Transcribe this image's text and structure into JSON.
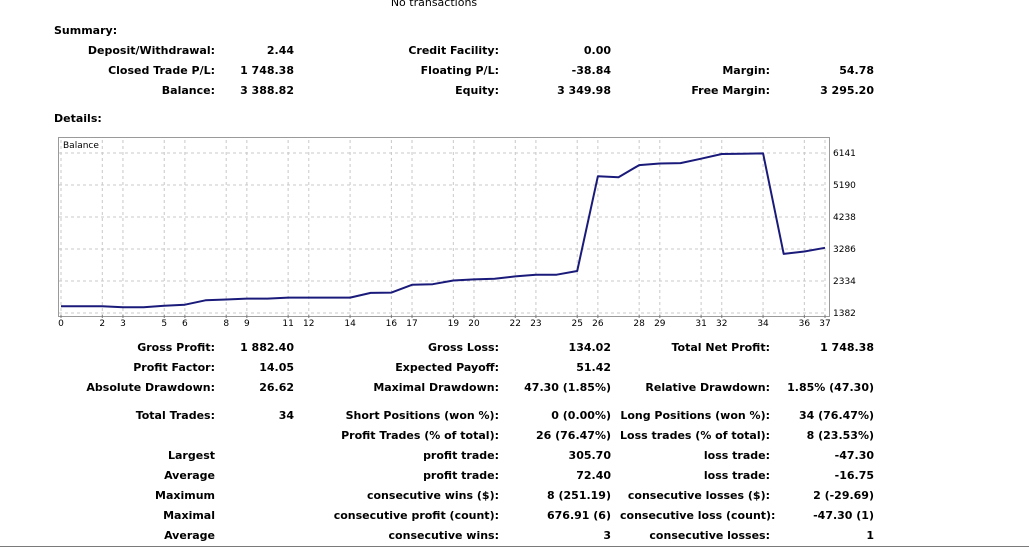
{
  "header": {
    "no_transactions": "No transactions"
  },
  "summary": {
    "title": "Summary:",
    "deposit_label": "Deposit/Withdrawal:",
    "deposit_value": "2.44",
    "credit_label": "Credit Facility:",
    "credit_value": "0.00",
    "closed_pl_label": "Closed Trade P/L:",
    "closed_pl_value": "1 748.38",
    "floating_pl_label": "Floating P/L:",
    "floating_pl_value": "-38.84",
    "margin_label": "Margin:",
    "margin_value": "54.78",
    "balance_label": "Balance:",
    "balance_value": "3 388.82",
    "equity_label": "Equity:",
    "equity_value": "3 349.98",
    "free_margin_label": "Free Margin:",
    "free_margin_value": "3 295.20"
  },
  "details": {
    "title": "Details:"
  },
  "chart_data": {
    "type": "line",
    "title": "Balance",
    "x_ticks": [
      "0",
      "2",
      "3",
      "5",
      "6",
      "8",
      "9",
      "11",
      "12",
      "14",
      "16",
      "17",
      "19",
      "20",
      "22",
      "23",
      "25",
      "26",
      "28",
      "29",
      "31",
      "32",
      "34",
      "36",
      "37"
    ],
    "y_ticks": [
      "6141",
      "5190",
      "4238",
      "3286",
      "2334",
      "1382"
    ],
    "ylim": [
      1382,
      6141
    ],
    "grid": true,
    "series": [
      {
        "x": [
          0,
          1,
          2,
          3,
          4,
          5,
          6,
          7,
          8,
          9,
          10,
          11,
          12,
          13,
          14,
          15,
          16,
          17,
          18,
          19,
          20,
          21,
          22,
          23,
          24,
          25,
          26,
          27,
          28,
          29,
          30,
          31,
          32,
          33,
          34,
          35,
          36,
          37
        ],
        "values": [
          1581,
          1581,
          1581,
          1556,
          1556,
          1600,
          1630,
          1760,
          1785,
          1810,
          1810,
          1840,
          1840,
          1840,
          1840,
          1980,
          1990,
          2220,
          2240,
          2350,
          2380,
          2400,
          2470,
          2520,
          2520,
          2630,
          5450,
          5420,
          5780,
          5830,
          5840,
          5970,
          6110,
          6120,
          6130,
          3140,
          3210,
          3320
        ],
        "color": "#1a1a7a"
      }
    ]
  },
  "stats": {
    "gross_profit_label": "Gross Profit:",
    "gross_profit_value": "1 882.40",
    "gross_loss_label": "Gross Loss:",
    "gross_loss_value": "134.02",
    "total_net_profit_label": "Total Net Profit:",
    "total_net_profit_value": "1 748.38",
    "profit_factor_label": "Profit Factor:",
    "profit_factor_value": "14.05",
    "expected_payoff_label": "Expected Payoff:",
    "expected_payoff_value": "51.42",
    "absolute_drawdown_label": "Absolute Drawdown:",
    "absolute_drawdown_value": "26.62",
    "maximal_drawdown_label": "Maximal Drawdown:",
    "maximal_drawdown_value": "47.30 (1.85%)",
    "relative_drawdown_label": "Relative Drawdown:",
    "relative_drawdown_value": "1.85% (47.30)",
    "total_trades_label": "Total Trades:",
    "total_trades_value": "34",
    "short_positions_label": "Short Positions (won %):",
    "short_positions_value": "0 (0.00%)",
    "long_positions_label": "Long Positions (won %):",
    "long_positions_value": "34 (76.47%)",
    "profit_trades_label": "Profit Trades (% of total):",
    "profit_trades_value": "26 (76.47%)",
    "loss_trades_label": "Loss trades (% of total):",
    "loss_trades_value": "8 (23.53%)",
    "largest_label": "Largest",
    "largest_profit_label": "profit trade:",
    "largest_profit_value": "305.70",
    "largest_loss_label": "loss trade:",
    "largest_loss_value": "-47.30",
    "average_label": "Average",
    "average_profit_label": "profit trade:",
    "average_profit_value": "72.40",
    "average_loss_label": "loss trade:",
    "average_loss_value": "-16.75",
    "maximum_label": "Maximum",
    "max_consec_wins_label": "consecutive wins ($):",
    "max_consec_wins_value": "8 (251.19)",
    "max_consec_losses_label": "consecutive losses ($):",
    "max_consec_losses_value": "2 (-29.69)",
    "maximal_label": "Maximal",
    "maximal_consec_profit_label": "consecutive profit (count):",
    "maximal_consec_profit_value": "676.91 (6)",
    "maximal_consec_loss_label": "consecutive loss (count):",
    "maximal_consec_loss_value": "-47.30 (1)",
    "average2_label": "Average",
    "avg_consec_wins_label": "consecutive wins:",
    "avg_consec_wins_value": "3",
    "avg_consec_losses_label": "consecutive losses:",
    "avg_consec_losses_value": "1"
  }
}
